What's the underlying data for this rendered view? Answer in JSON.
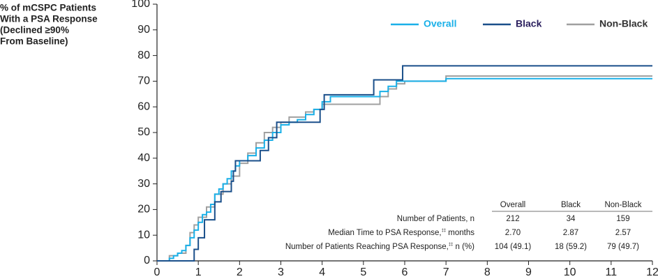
{
  "chart_data": {
    "type": "step",
    "ylabel": [
      "% of mCSPC Patients",
      "With a PSA Response",
      "(Declined ≥90%",
      "From Baseline)"
    ],
    "xlim": [
      0,
      12
    ],
    "ylim": [
      0,
      100
    ],
    "xticks": [
      0,
      1,
      2,
      3,
      4,
      5,
      6,
      7,
      8,
      9,
      10,
      11,
      12
    ],
    "yticks": [
      0,
      10,
      20,
      30,
      40,
      50,
      60,
      70,
      80,
      90,
      100
    ],
    "series": [
      {
        "name": "Overall",
        "color": "#1ab0e8",
        "label_color": "#1ab0e8",
        "x": [
          0,
          0.3,
          0.4,
          0.5,
          0.6,
          0.7,
          0.8,
          0.9,
          1.0,
          1.1,
          1.2,
          1.3,
          1.4,
          1.5,
          1.6,
          1.7,
          1.8,
          1.9,
          2.0,
          2.2,
          2.4,
          2.6,
          2.8,
          3.0,
          3.2,
          3.4,
          3.6,
          3.8,
          4.0,
          4.2,
          5.2,
          5.4,
          5.6,
          5.8,
          6.0,
          7.0,
          12
        ],
        "y": [
          0,
          1,
          2,
          3,
          4,
          6,
          9,
          12,
          15,
          18,
          19,
          22,
          26,
          28,
          30,
          32,
          35,
          37,
          39,
          41,
          44,
          47,
          50,
          53,
          54,
          55,
          57,
          59,
          62,
          64,
          64,
          66,
          68,
          70,
          70,
          71,
          71
        ]
      },
      {
        "name": "Black",
        "color": "#1a4f8a",
        "label_color": "#2a1f5e",
        "x": [
          0,
          0.9,
          1.0,
          1.15,
          1.4,
          1.55,
          1.8,
          1.85,
          1.9,
          2.5,
          2.7,
          2.9,
          3.95,
          4.05,
          5.25,
          5.95,
          12
        ],
        "y": [
          0,
          4.5,
          9,
          16,
          23,
          27,
          31,
          35,
          39,
          43,
          48,
          54,
          59,
          64.7,
          70.5,
          76,
          76
        ]
      },
      {
        "name": "Non-Black",
        "color": "#a0a0a0",
        "label_color": "#333333",
        "x": [
          0,
          0.3,
          0.5,
          0.7,
          0.8,
          0.9,
          1.0,
          1.2,
          1.4,
          1.6,
          1.8,
          2.0,
          2.2,
          2.4,
          2.6,
          2.8,
          3.0,
          3.2,
          3.6,
          3.8,
          4.0,
          5.4,
          5.6,
          5.8,
          6.0,
          7.0,
          12
        ],
        "y": [
          0,
          2,
          3,
          6,
          11,
          14,
          17,
          21,
          26,
          30,
          33,
          38,
          42,
          46,
          50,
          52,
          54,
          56,
          58,
          59,
          61,
          64,
          67,
          69,
          70,
          72,
          72
        ]
      }
    ],
    "table": {
      "header": [
        "Overall",
        "Black",
        "Non-Black"
      ],
      "rows": [
        {
          "label": "Number of Patients, n",
          "values": [
            "212",
            "34",
            "159"
          ]
        },
        {
          "label": "Median Time to PSA Response,",
          "note": "‡‡",
          "unit": "months",
          "values": [
            "2.70",
            "2.87",
            "2.57"
          ]
        },
        {
          "label": "Number of Patients Reaching PSA Response,",
          "note": "‡‡",
          "unit": "n (%)",
          "values": [
            "104 (49.1)",
            "18 (59.2)",
            "79 (49.7)"
          ]
        }
      ]
    }
  }
}
